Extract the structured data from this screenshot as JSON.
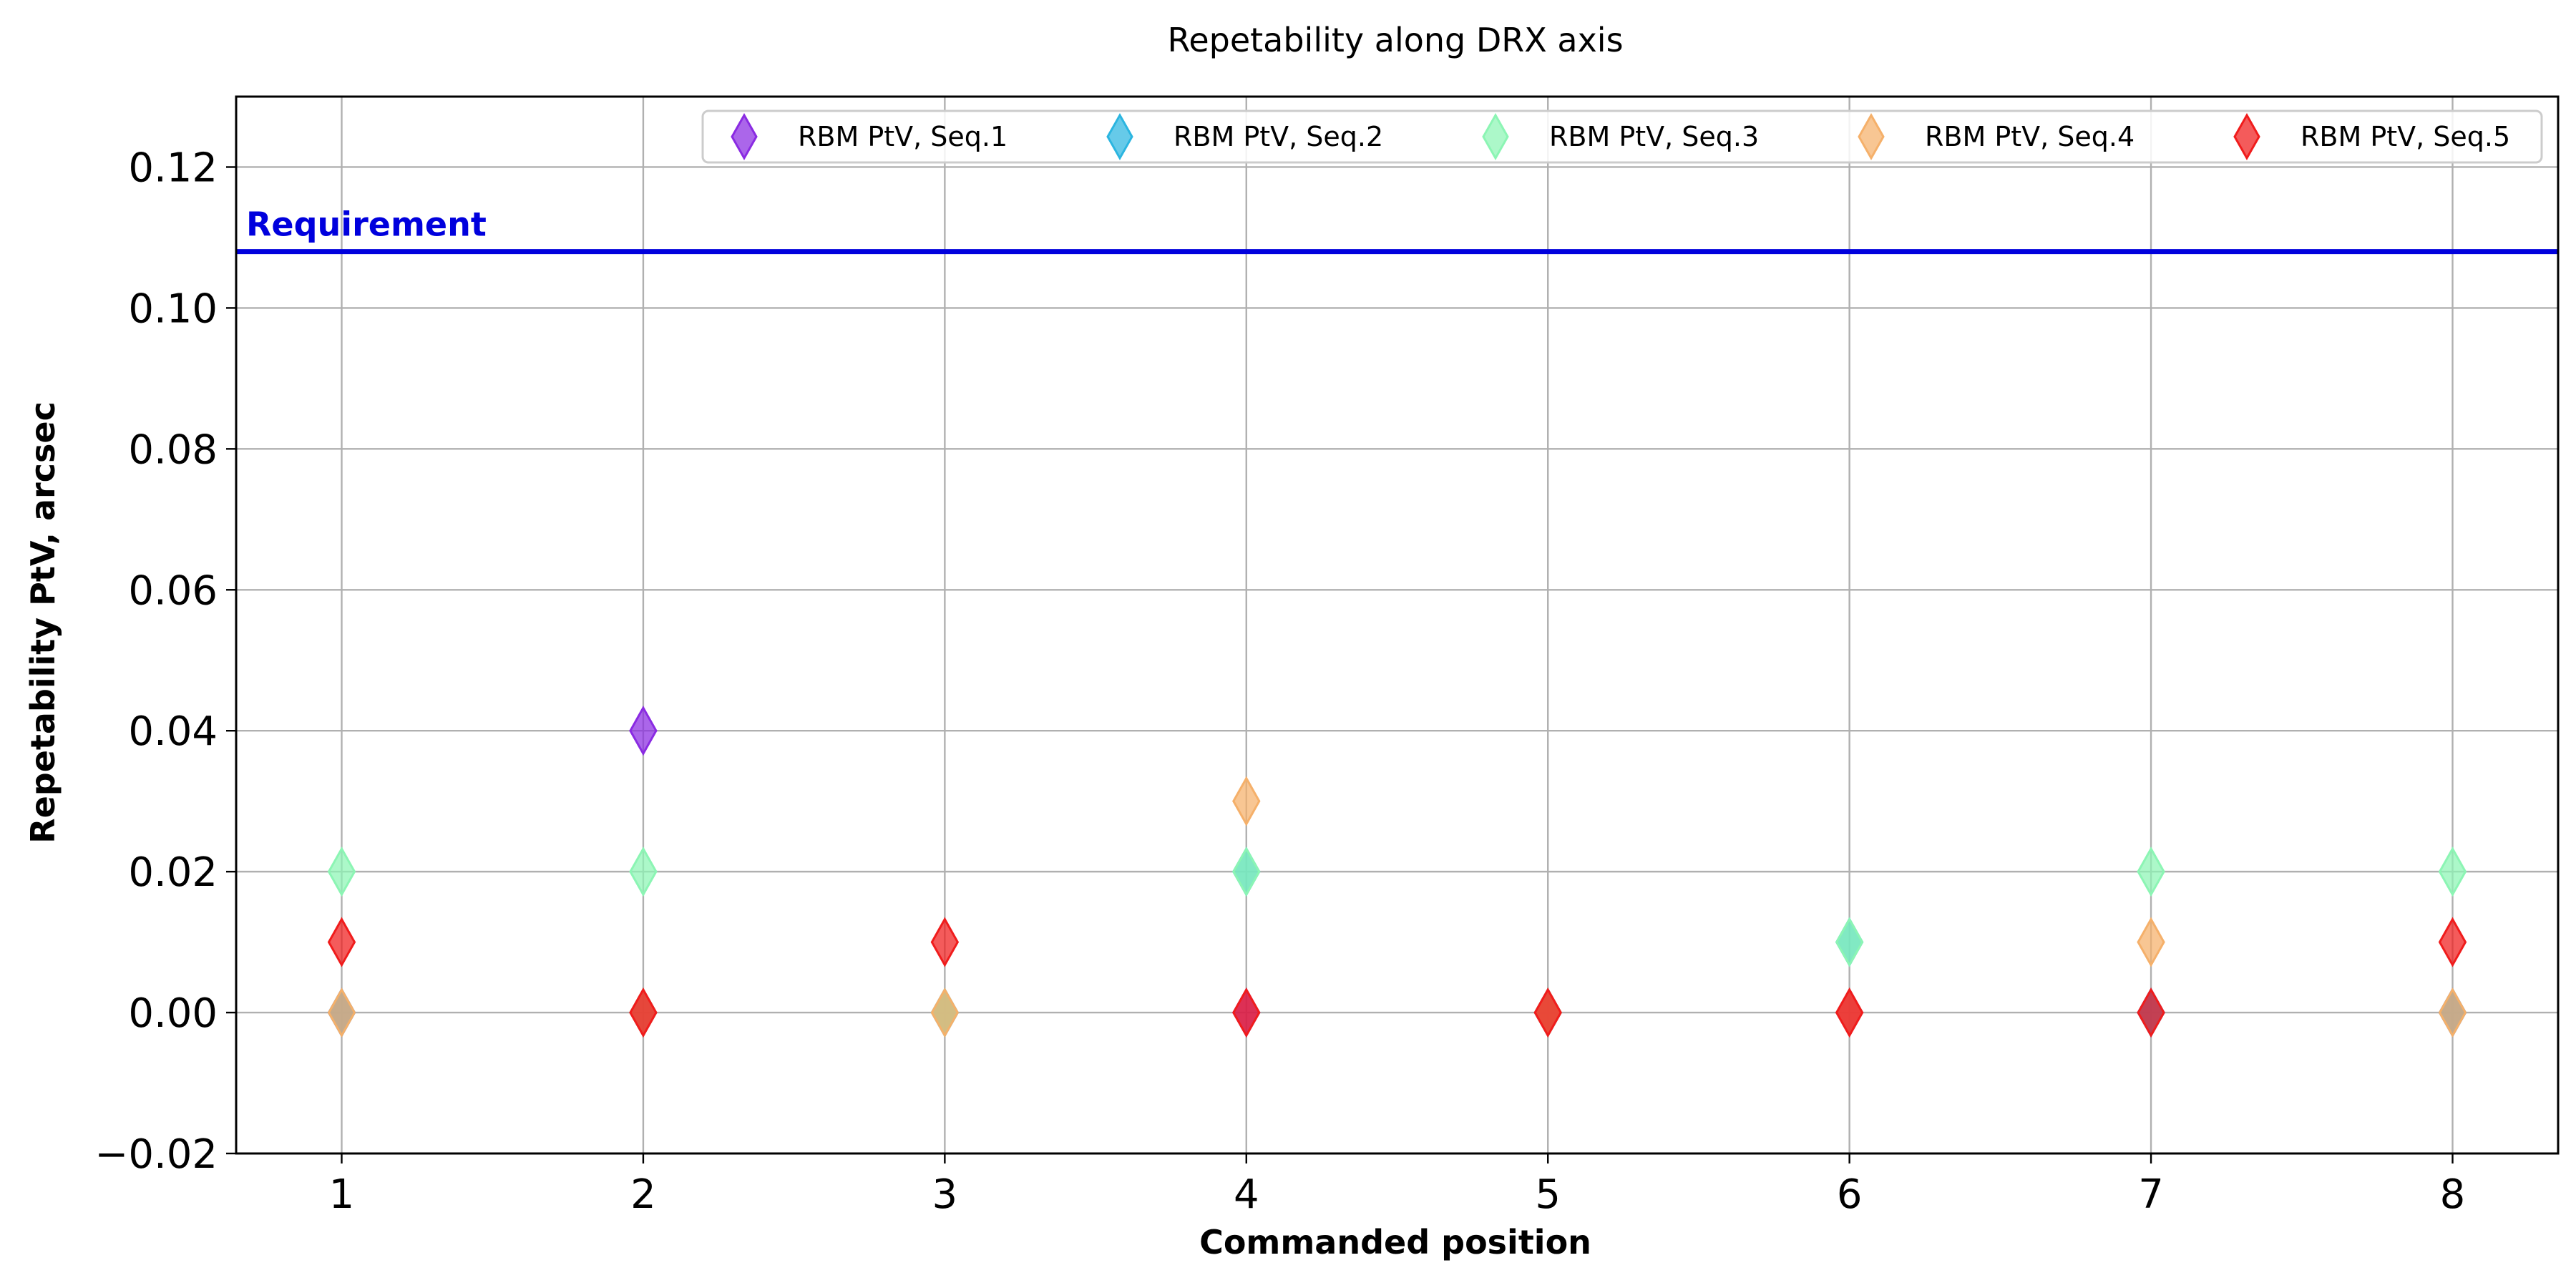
{
  "chart_data": {
    "type": "scatter",
    "title": "Repetability along DRX axis",
    "xlabel": "Commanded position",
    "ylabel": "Repetability PtV, arcsec",
    "xlim": [
      0.65,
      8.35
    ],
    "ylim": [
      -0.02,
      0.13
    ],
    "x_ticks": [
      1,
      2,
      3,
      4,
      5,
      6,
      7,
      8
    ],
    "y_ticks": [
      -0.02,
      0.0,
      0.02,
      0.04,
      0.06,
      0.08,
      0.1,
      0.12
    ],
    "y_tick_labels": [
      "−0.02",
      "0.00",
      "0.02",
      "0.04",
      "0.06",
      "0.08",
      "0.10",
      "0.12"
    ],
    "grid": true,
    "legend_position": "top-right",
    "marker": "thin-diamond",
    "requirement": {
      "label": "Requirement",
      "value": 0.108,
      "color": "#0000dd"
    },
    "series": [
      {
        "name": "RBM PtV, Seq.1",
        "color": "#8a2be2",
        "points": [
          [
            1,
            0.0
          ],
          [
            2,
            0.04
          ],
          [
            3,
            0.0
          ],
          [
            4,
            0.0
          ],
          [
            5,
            0.0
          ],
          [
            6,
            0.0
          ],
          [
            7,
            0.0
          ],
          [
            8,
            0.0
          ]
        ]
      },
      {
        "name": "RBM PtV, Seq.2",
        "color": "#2bb5e0",
        "points": [
          [
            1,
            0.0
          ],
          [
            2,
            0.0
          ],
          [
            3,
            0.0
          ],
          [
            4,
            0.02
          ],
          [
            5,
            0.0
          ],
          [
            6,
            0.01
          ],
          [
            7,
            0.0
          ],
          [
            8,
            0.0
          ]
        ]
      },
      {
        "name": "RBM PtV, Seq.3",
        "color": "#8cf5b4",
        "points": [
          [
            1,
            0.02
          ],
          [
            2,
            0.02
          ],
          [
            3,
            0.0
          ],
          [
            4,
            0.02
          ],
          [
            5,
            0.0
          ],
          [
            6,
            0.01
          ],
          [
            7,
            0.02
          ],
          [
            8,
            0.02
          ]
        ]
      },
      {
        "name": "RBM PtV, Seq.4",
        "color": "#f5b06a",
        "points": [
          [
            1,
            0.0
          ],
          [
            2,
            0.0
          ],
          [
            3,
            0.0
          ],
          [
            4,
            0.03
          ],
          [
            5,
            0.0
          ],
          [
            6,
            0.0
          ],
          [
            7,
            0.01
          ],
          [
            8,
            0.0
          ]
        ]
      },
      {
        "name": "RBM PtV, Seq.5",
        "color": "#f01c1c",
        "points": [
          [
            1,
            0.01
          ],
          [
            2,
            0.0
          ],
          [
            3,
            0.01
          ],
          [
            4,
            0.0
          ],
          [
            5,
            0.0
          ],
          [
            6,
            0.0
          ],
          [
            7,
            0.0
          ],
          [
            8,
            0.01
          ]
        ]
      }
    ]
  }
}
